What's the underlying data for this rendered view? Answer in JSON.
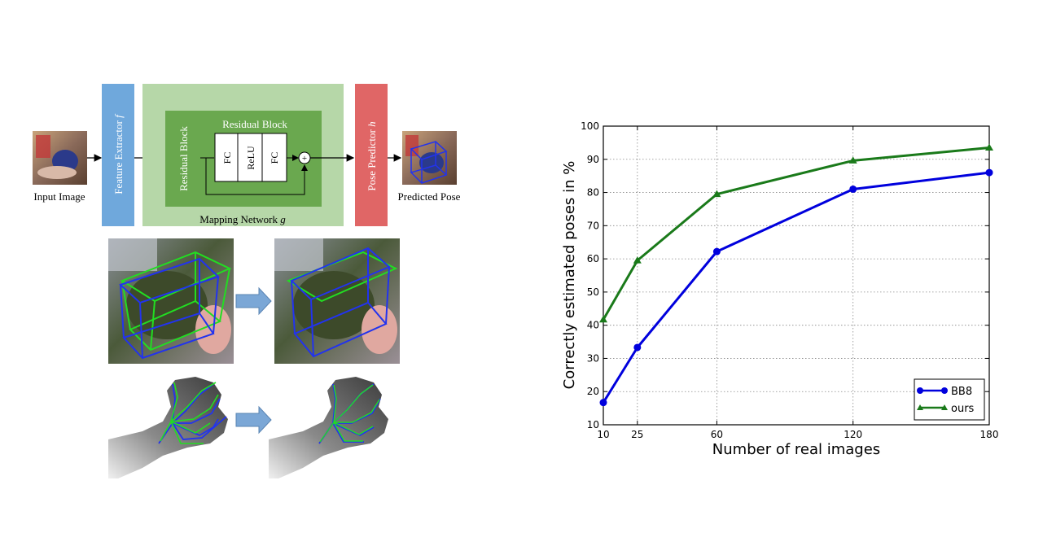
{
  "diagram": {
    "input_label": "Input Image",
    "feature_extractor": "Feature Extractor",
    "feature_symbol": "f",
    "residual_block_left": "Residual Block",
    "residual_block_top": "Residual Block",
    "fc1": "FC",
    "relu": "ReLU",
    "fc2": "FC",
    "plus": "+",
    "mapping_network": "Mapping Network",
    "mapping_symbol": "g",
    "pose_predictor": "Pose Predictor",
    "pose_symbol": "h",
    "output_label": "Predicted Pose"
  },
  "colors": {
    "feature_extractor": "#6fa8dc",
    "mapping_outer": "#b6d7a8",
    "residual": "#6aa84f",
    "pose_predictor": "#e06666",
    "bbox_blue": "#2233ee",
    "bbox_green": "#22dd22",
    "arrow_fill": "#7ba7d6"
  },
  "icons": {
    "input_thumb": "photo-thumbnail-icon",
    "output_thumb": "pose-box-thumbnail-icon",
    "arrow": "right-block-arrow-icon"
  },
  "chart_data": {
    "type": "line",
    "xlabel": "Number of real images",
    "ylabel": "Correctly estimated poses in %",
    "xlim": [
      10,
      180
    ],
    "ylim": [
      10,
      100
    ],
    "xticks": [
      10,
      25,
      60,
      120,
      180
    ],
    "yticks": [
      10,
      20,
      30,
      40,
      50,
      60,
      70,
      80,
      90,
      100
    ],
    "grid": true,
    "legend_position": "bottom-right",
    "x": [
      10,
      25,
      60,
      120,
      180
    ],
    "series": [
      {
        "name": "BB8",
        "color": "#0000dd",
        "marker": "circle",
        "values": [
          16.7,
          33.3,
          62.2,
          81.0,
          86.0
        ]
      },
      {
        "name": "ours",
        "color": "#1a7a1a",
        "marker": "triangle",
        "values": [
          41.7,
          59.5,
          79.5,
          89.6,
          93.5
        ]
      }
    ]
  }
}
